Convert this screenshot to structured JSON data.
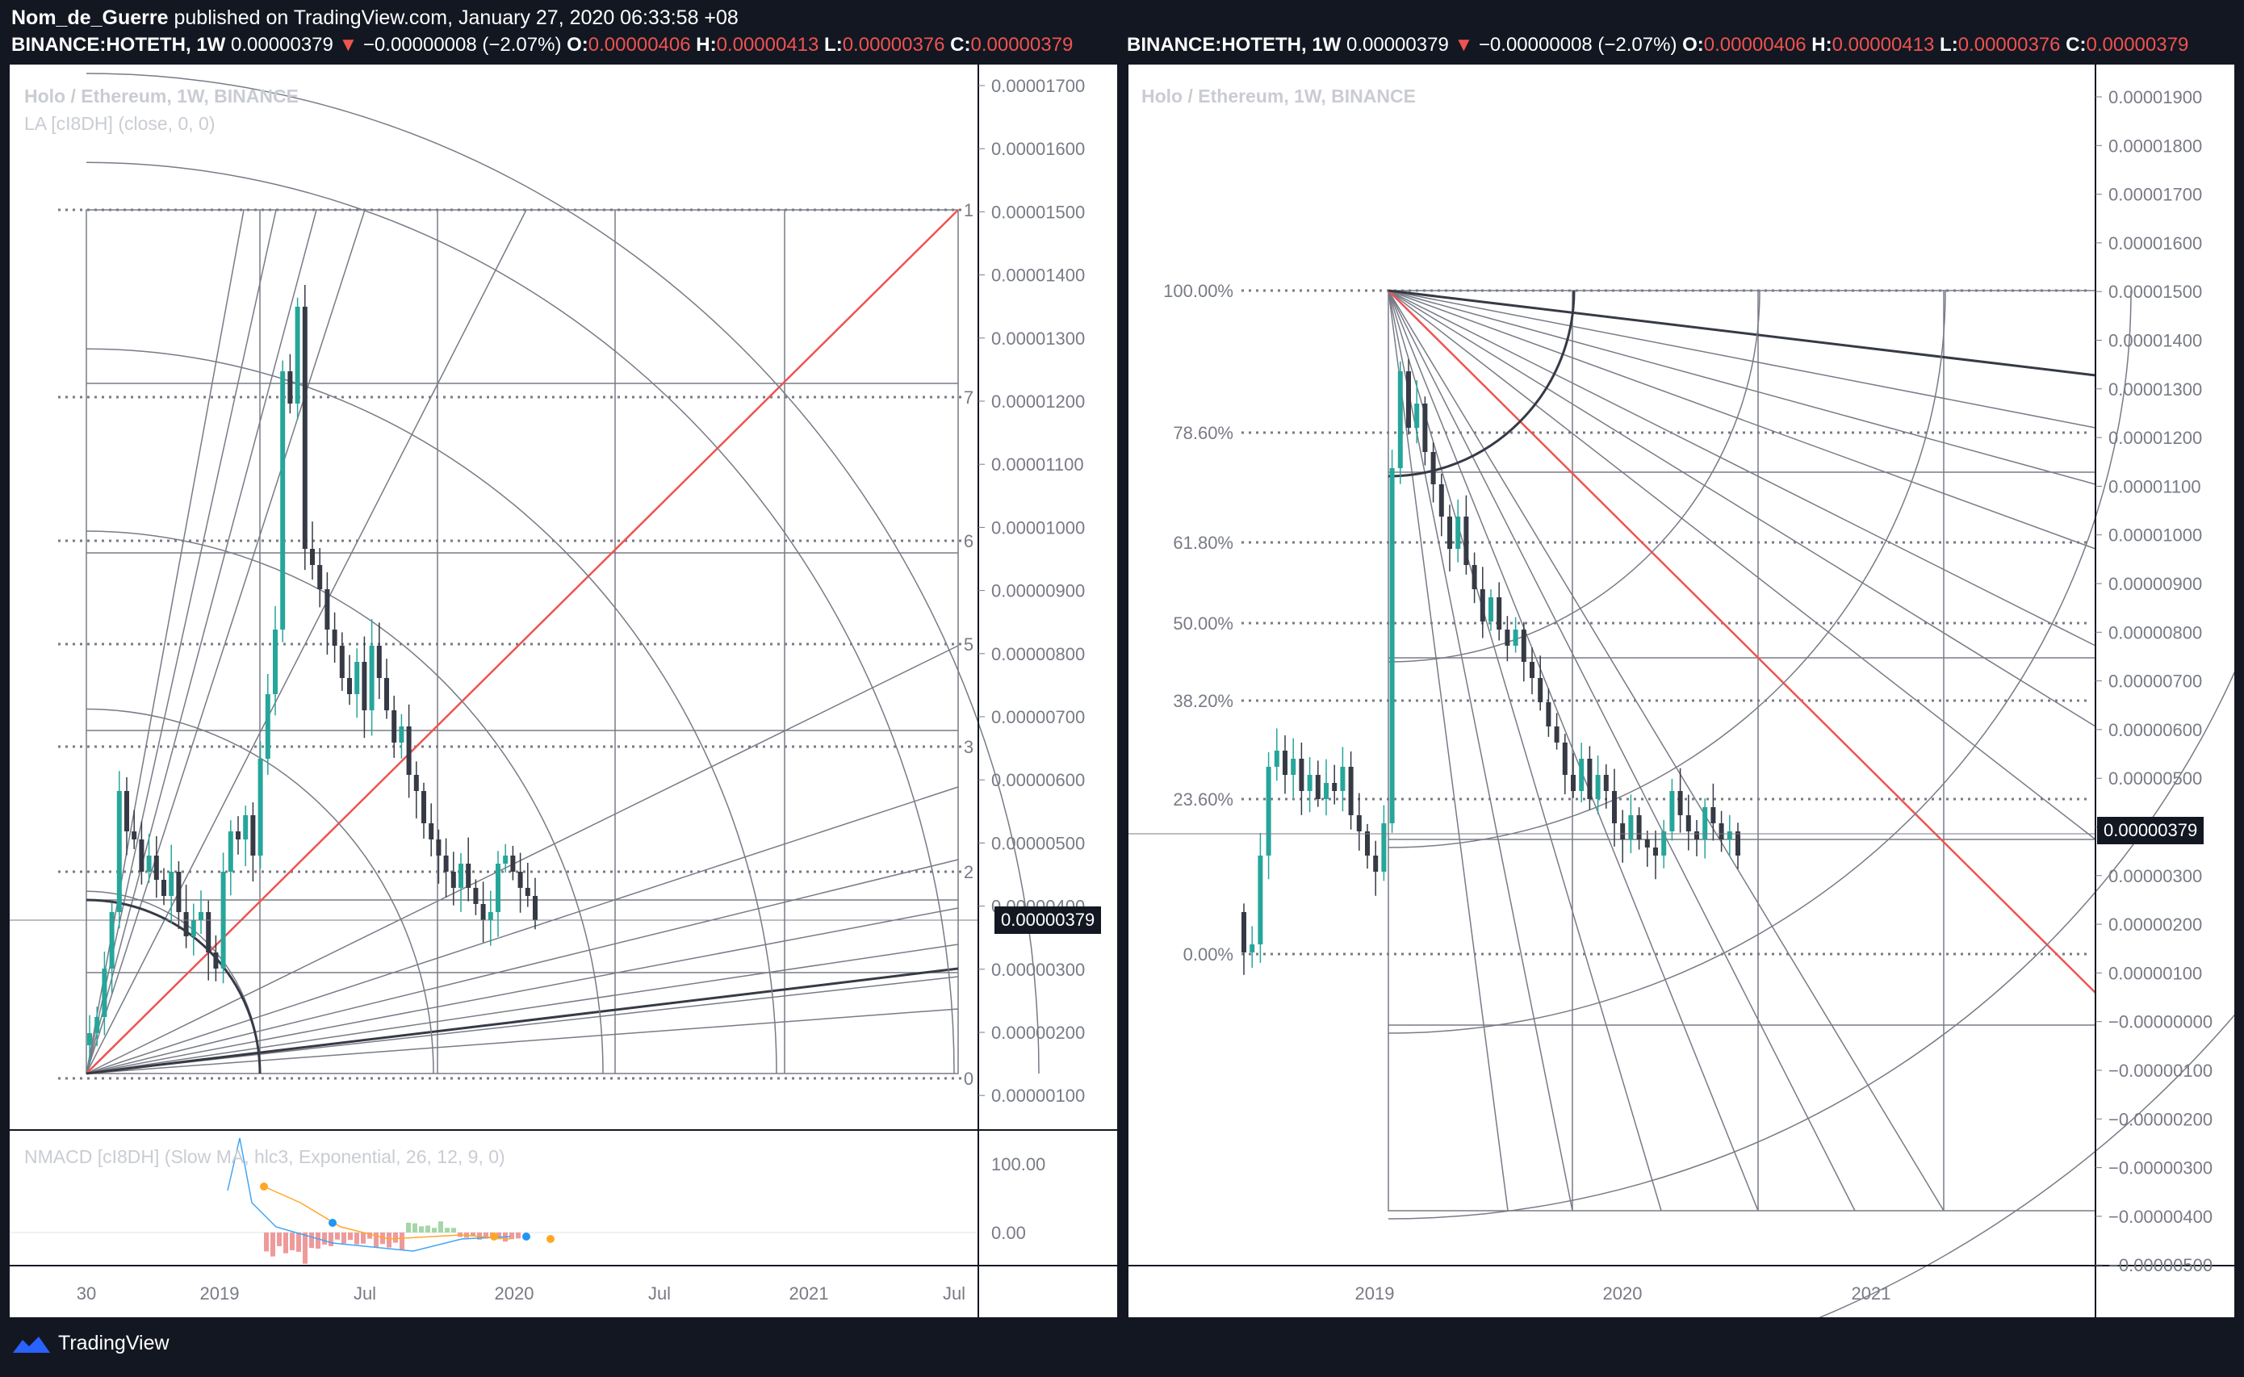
{
  "header": {
    "author": "Nom_de_Guerre",
    "published": " published on TradingView.com, January 27, 2020 06:33:58 +08"
  },
  "ohlc": {
    "symbol": "BINANCE:HOTETH, 1W",
    "last": "0.00000379",
    "arrow": "▼",
    "change": "−0.00000008 (−2.07%)",
    "o_label": "O:",
    "o": "0.00000406",
    "h_label": "H:",
    "h": "0.00000413",
    "l_label": "L:",
    "l": "0.00000376",
    "c_label": "C:",
    "c": "0.00000379"
  },
  "left_chart": {
    "title": "Holo / Ethereum, 1W, BINANCE",
    "indicator": "LA [cI8DH] (close, 0, 0)",
    "price_label": "0.00000379",
    "macd_title": "NMACD [cI8DH] (Slow MA, hlc3, Exponential, 26, 12, 9, 0)"
  },
  "right_chart": {
    "title": "Holo / Ethereum, 1W, BINANCE",
    "price_label": "0.00000379"
  },
  "footer": {
    "brand": "TradingView"
  },
  "colors": {
    "up": "#26a69a",
    "down": "#363a45",
    "red": "#ef5350",
    "grid": "#787b86"
  },
  "chart_data": [
    {
      "type": "candlestick",
      "title": "Holo / Ethereum, 1W, BINANCE",
      "y_ticks": [
        "0.00001700",
        "0.00001600",
        "0.00001500",
        "0.00001400",
        "0.00001300",
        "0.00001200",
        "0.00001100",
        "0.00001000",
        "0.00000900",
        "0.00000800",
        "0.00000700",
        "0.00000600",
        "0.00000500",
        "0.00000400",
        "0.00000300",
        "0.00000200",
        "0.00000100"
      ],
      "gann_levels": [
        "1",
        "7",
        "6",
        "5",
        "3",
        "2",
        "0"
      ],
      "x_ticks": [
        "30",
        "2019",
        "Jul",
        "2020",
        "Jul",
        "2021",
        "Jul"
      ],
      "macd_ticks": [
        "100.00",
        "0.00"
      ],
      "last_price": 3.79e-06
    },
    {
      "type": "candlestick",
      "title": "Holo / Ethereum, 1W, BINANCE",
      "y_ticks": [
        "0.00001900",
        "0.00001800",
        "0.00001700",
        "0.00001600",
        "0.00001500",
        "0.00001400",
        "0.00001300",
        "0.00001200",
        "0.00001100",
        "0.00001000",
        "0.00000900",
        "0.00000800",
        "0.00000700",
        "0.00000600",
        "0.00000500",
        "0.00000400",
        "0.00000300",
        "0.00000200",
        "0.00000100",
        "−0.00000000",
        "−0.00000100",
        "−0.00000200",
        "−0.00000300",
        "−0.00000400",
        "−0.00000500"
      ],
      "fib_levels": [
        "100.00%",
        "78.60%",
        "61.80%",
        "50.00%",
        "38.20%",
        "23.60%",
        "0.00%"
      ],
      "x_ticks": [
        "2019",
        "2020",
        "2021"
      ],
      "last_price": 3.79e-06
    }
  ]
}
